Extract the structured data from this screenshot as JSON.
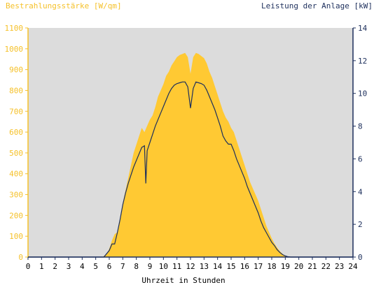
{
  "chart_data": {
    "type": "area",
    "title_left": "Bestrahlungsstärke [W/qm]",
    "title_right": "Leistung der Anlage [kW]",
    "xlabel": "Uhrzeit in Stunden",
    "xlim": [
      0,
      24
    ],
    "x_ticks": [
      "0",
      "1",
      "2",
      "3",
      "4",
      "5",
      "6",
      "7",
      "8",
      "9",
      "10",
      "11",
      "12",
      "13",
      "14",
      "15",
      "16",
      "17",
      "18",
      "19",
      "20",
      "21",
      "22",
      "23",
      "24"
    ],
    "y_left": {
      "lim": [
        0,
        1100
      ],
      "ticks": [
        "0",
        "100",
        "200",
        "300",
        "400",
        "500",
        "600",
        "700",
        "800",
        "900",
        "1000",
        "1100"
      ]
    },
    "y_right": {
      "lim": [
        0,
        14
      ],
      "ticks": [
        "0",
        "2",
        "4",
        "6",
        "8",
        "10",
        "12",
        "14"
      ]
    },
    "colors": {
      "plot_bg": "#dcdcdc",
      "area": "#ffc933",
      "line": "#1d2f5c",
      "left_axis": "#f5c12a",
      "right_axis": "#1d2f5c"
    },
    "series": [
      {
        "name": "Bestrahlungsstärke [W/qm]",
        "axis": "left",
        "style": "area",
        "points": [
          [
            0,
            0
          ],
          [
            5.5,
            0
          ],
          [
            5.8,
            15
          ],
          [
            6.0,
            40
          ],
          [
            6.2,
            80
          ],
          [
            6.4,
            110
          ],
          [
            6.6,
            120
          ],
          [
            6.8,
            190
          ],
          [
            7.0,
            260
          ],
          [
            7.2,
            320
          ],
          [
            7.4,
            380
          ],
          [
            7.6,
            440
          ],
          [
            7.8,
            500
          ],
          [
            8.0,
            540
          ],
          [
            8.2,
            580
          ],
          [
            8.4,
            620
          ],
          [
            8.6,
            600
          ],
          [
            8.8,
            630
          ],
          [
            9.0,
            660
          ],
          [
            9.2,
            680
          ],
          [
            9.4,
            720
          ],
          [
            9.6,
            770
          ],
          [
            9.8,
            800
          ],
          [
            10.0,
            830
          ],
          [
            10.2,
            870
          ],
          [
            10.4,
            890
          ],
          [
            10.6,
            920
          ],
          [
            10.8,
            940
          ],
          [
            11.0,
            960
          ],
          [
            11.2,
            970
          ],
          [
            11.4,
            975
          ],
          [
            11.6,
            980
          ],
          [
            11.8,
            960
          ],
          [
            12.0,
            880
          ],
          [
            12.2,
            960
          ],
          [
            12.4,
            980
          ],
          [
            12.6,
            975
          ],
          [
            12.8,
            965
          ],
          [
            13.0,
            955
          ],
          [
            13.2,
            930
          ],
          [
            13.4,
            890
          ],
          [
            13.6,
            860
          ],
          [
            13.8,
            820
          ],
          [
            14.0,
            780
          ],
          [
            14.2,
            740
          ],
          [
            14.4,
            700
          ],
          [
            14.6,
            670
          ],
          [
            14.8,
            650
          ],
          [
            15.0,
            620
          ],
          [
            15.2,
            600
          ],
          [
            15.4,
            560
          ],
          [
            15.6,
            520
          ],
          [
            15.8,
            480
          ],
          [
            16.0,
            440
          ],
          [
            16.2,
            400
          ],
          [
            16.4,
            360
          ],
          [
            16.6,
            330
          ],
          [
            16.8,
            300
          ],
          [
            17.0,
            270
          ],
          [
            17.2,
            230
          ],
          [
            17.4,
            190
          ],
          [
            17.6,
            150
          ],
          [
            17.8,
            120
          ],
          [
            18.0,
            90
          ],
          [
            18.2,
            65
          ],
          [
            18.4,
            45
          ],
          [
            18.6,
            28
          ],
          [
            18.8,
            15
          ],
          [
            19.0,
            6
          ],
          [
            19.2,
            2
          ],
          [
            19.4,
            0
          ],
          [
            24,
            0
          ]
        ]
      },
      {
        "name": "Leistung der Anlage [kW]",
        "axis": "right",
        "style": "line",
        "points": [
          [
            0,
            0
          ],
          [
            5.6,
            0
          ],
          [
            5.8,
            0.2
          ],
          [
            6.0,
            0.4
          ],
          [
            6.2,
            0.8
          ],
          [
            6.4,
            0.8
          ],
          [
            6.6,
            1.5
          ],
          [
            6.8,
            2.3
          ],
          [
            7.0,
            3.2
          ],
          [
            7.2,
            3.9
          ],
          [
            7.4,
            4.5
          ],
          [
            7.6,
            5.0
          ],
          [
            7.8,
            5.5
          ],
          [
            8.0,
            5.9
          ],
          [
            8.2,
            6.3
          ],
          [
            8.4,
            6.7
          ],
          [
            8.6,
            6.8
          ],
          [
            8.7,
            4.5
          ],
          [
            8.8,
            6.5
          ],
          [
            9.0,
            7.0
          ],
          [
            9.2,
            7.5
          ],
          [
            9.4,
            8.0
          ],
          [
            9.6,
            8.4
          ],
          [
            9.8,
            8.8
          ],
          [
            10.0,
            9.2
          ],
          [
            10.2,
            9.6
          ],
          [
            10.4,
            10.0
          ],
          [
            10.6,
            10.3
          ],
          [
            10.8,
            10.5
          ],
          [
            11.0,
            10.6
          ],
          [
            11.2,
            10.65
          ],
          [
            11.4,
            10.7
          ],
          [
            11.6,
            10.7
          ],
          [
            11.8,
            10.4
          ],
          [
            12.0,
            9.1
          ],
          [
            12.2,
            10.3
          ],
          [
            12.4,
            10.7
          ],
          [
            12.6,
            10.65
          ],
          [
            12.8,
            10.6
          ],
          [
            13.0,
            10.5
          ],
          [
            13.2,
            10.2
          ],
          [
            13.4,
            9.8
          ],
          [
            13.6,
            9.4
          ],
          [
            13.8,
            9.0
          ],
          [
            14.0,
            8.5
          ],
          [
            14.2,
            8.0
          ],
          [
            14.4,
            7.4
          ],
          [
            14.6,
            7.1
          ],
          [
            14.8,
            6.9
          ],
          [
            15.0,
            6.9
          ],
          [
            15.2,
            6.5
          ],
          [
            15.4,
            6.0
          ],
          [
            15.6,
            5.6
          ],
          [
            15.8,
            5.2
          ],
          [
            16.0,
            4.8
          ],
          [
            16.2,
            4.3
          ],
          [
            16.4,
            3.9
          ],
          [
            16.6,
            3.5
          ],
          [
            16.8,
            3.1
          ],
          [
            17.0,
            2.7
          ],
          [
            17.2,
            2.2
          ],
          [
            17.4,
            1.8
          ],
          [
            17.6,
            1.5
          ],
          [
            17.8,
            1.2
          ],
          [
            18.0,
            0.9
          ],
          [
            18.2,
            0.7
          ],
          [
            18.4,
            0.45
          ],
          [
            18.6,
            0.28
          ],
          [
            18.8,
            0.15
          ],
          [
            19.0,
            0.07
          ],
          [
            19.2,
            0.02
          ],
          [
            19.4,
            0
          ],
          [
            24,
            0
          ]
        ]
      }
    ]
  }
}
